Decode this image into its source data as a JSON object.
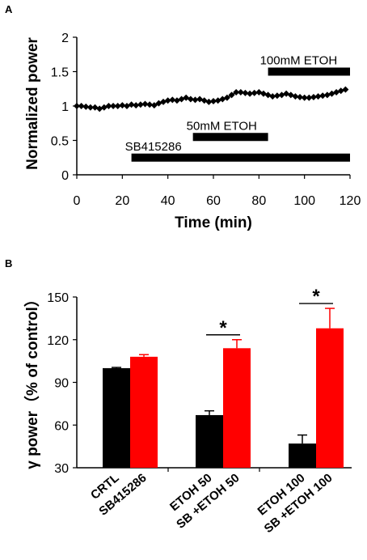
{
  "chart_data": [
    {
      "panel": "A",
      "type": "line",
      "xlabel": "Time (min)",
      "ylabel": "Normalized power",
      "xlim": [
        0,
        120
      ],
      "ylim": [
        0,
        2
      ],
      "xticks": [
        "0",
        "20",
        "40",
        "60",
        "80",
        "100",
        "120"
      ],
      "yticks": [
        "0",
        "0.5",
        "1",
        "1.5",
        "2"
      ],
      "series": [
        {
          "marker": "diamond",
          "color": "#000000",
          "x": [
            0,
            2,
            4,
            6,
            8,
            10,
            12,
            14,
            16,
            18,
            20,
            22,
            24,
            26,
            28,
            30,
            32,
            34,
            36,
            38,
            40,
            42,
            44,
            46,
            48,
            50,
            52,
            54,
            56,
            58,
            60,
            62,
            64,
            66,
            68,
            70,
            72,
            74,
            76,
            78,
            80,
            82,
            84,
            86,
            88,
            90,
            92,
            94,
            96,
            98,
            100,
            102,
            104,
            106,
            108,
            110,
            112,
            114,
            116,
            118
          ],
          "y": [
            1.0,
            1.0,
            0.99,
            0.98,
            0.98,
            0.96,
            0.98,
            1.0,
            1.0,
            1.0,
            1.01,
            1.0,
            1.02,
            1.01,
            1.02,
            1.03,
            1.02,
            1.01,
            1.04,
            1.06,
            1.08,
            1.09,
            1.08,
            1.1,
            1.12,
            1.1,
            1.09,
            1.1,
            1.08,
            1.06,
            1.07,
            1.08,
            1.1,
            1.12,
            1.16,
            1.2,
            1.2,
            1.19,
            1.18,
            1.19,
            1.2,
            1.18,
            1.16,
            1.14,
            1.15,
            1.16,
            1.18,
            1.16,
            1.14,
            1.13,
            1.12,
            1.12,
            1.13,
            1.14,
            1.15,
            1.16,
            1.18,
            1.2,
            1.22,
            1.24
          ]
        }
      ],
      "treatment_bars": [
        {
          "label": "100mM ETOH",
          "start": 84,
          "end": 120,
          "y": 1.5
        },
        {
          "label": "50mM ETOH",
          "start": 51,
          "end": 84,
          "y": 0.55
        },
        {
          "label": "SB415286",
          "start": 24,
          "end": 120,
          "y": 0.25
        }
      ]
    },
    {
      "panel": "B",
      "type": "bar",
      "ylabel": "γ power（% of control）",
      "ylim": [
        30,
        150
      ],
      "yticks": [
        "30",
        "60",
        "90",
        "120",
        "150"
      ],
      "categories": [
        "CRTL",
        "SB415286",
        "ETOH  50",
        "SB +ETOH  50",
        "ETOH 100",
        "SB +ETOH 100"
      ],
      "values": [
        100,
        108,
        67,
        114,
        47,
        128
      ],
      "errors": [
        0.5,
        1.5,
        3,
        6,
        6,
        14
      ],
      "colors": [
        "#000000",
        "#ff0000",
        "#000000",
        "#ff0000",
        "#000000",
        "#ff0000"
      ],
      "significance": [
        {
          "pair": [
            2,
            3
          ],
          "label": "*"
        },
        {
          "pair": [
            4,
            5
          ],
          "label": "*"
        }
      ]
    }
  ]
}
